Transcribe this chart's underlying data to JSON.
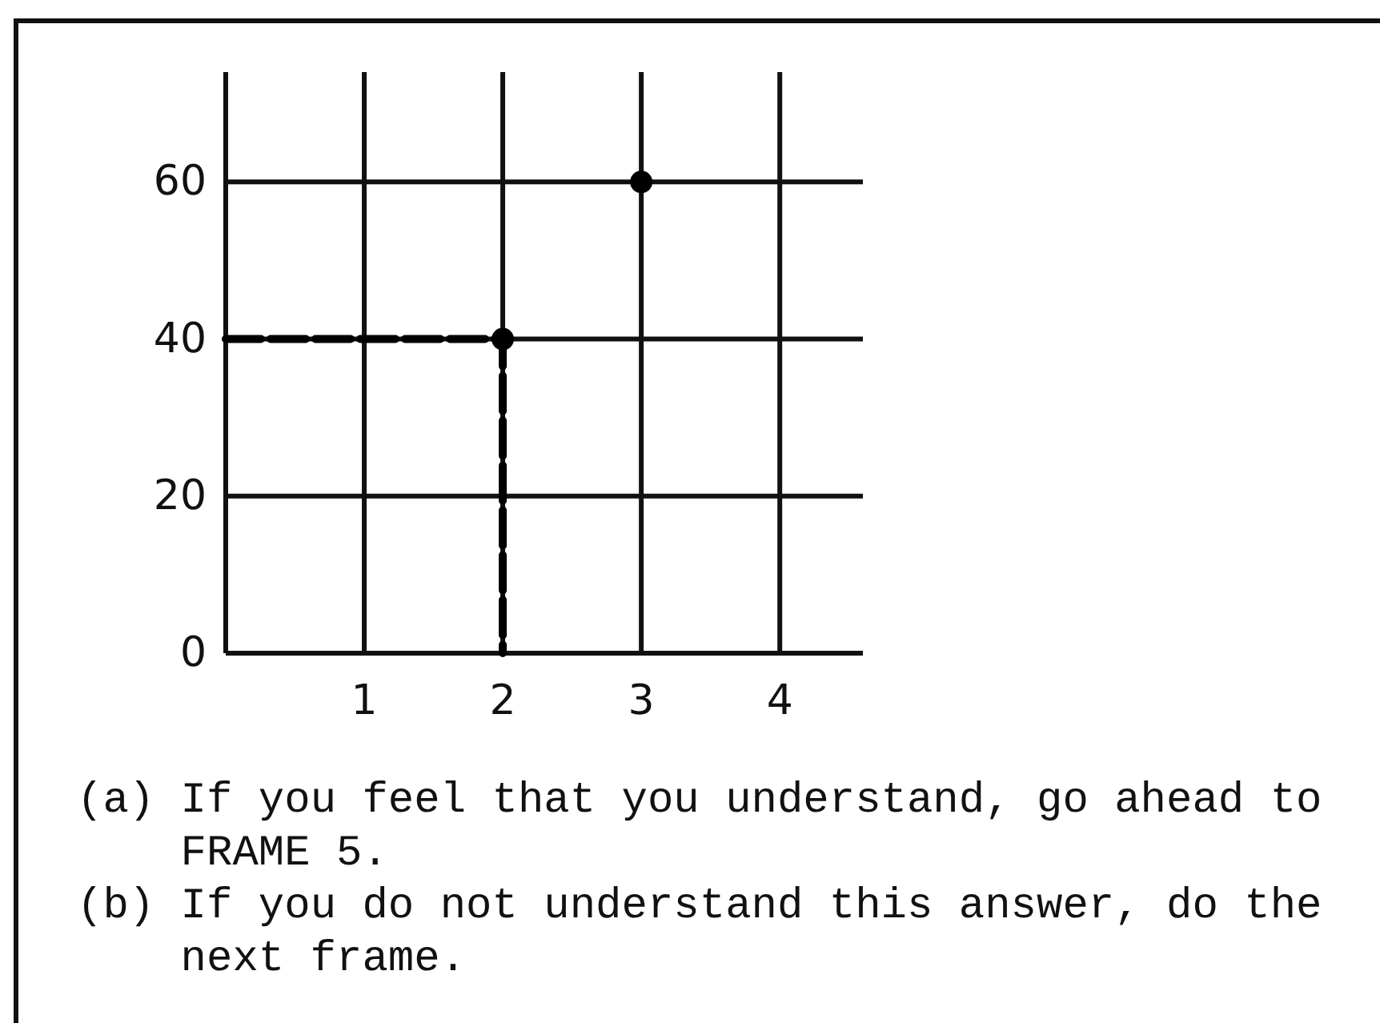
{
  "chart_data": {
    "type": "scatter",
    "xlim": [
      0,
      4.6
    ],
    "ylim": [
      0,
      74
    ],
    "xticks": [
      1,
      2,
      3,
      4
    ],
    "yticks": [
      0,
      20,
      40,
      60
    ],
    "grid": true,
    "series": [
      {
        "type": "line",
        "x": [
          0,
          2,
          2
        ],
        "values": [
          40,
          40,
          0
        ],
        "color": "#000000",
        "line_style": "dashed"
      },
      {
        "x": [
          2,
          3
        ],
        "values": [
          40,
          60
        ],
        "color": "#000000",
        "marker": "circle"
      }
    ],
    "annotations": [
      "(a) If you feel that you understand, go ahead to FRAME 5.",
      "(b) If you do not understand this answer, do the next frame."
    ]
  }
}
